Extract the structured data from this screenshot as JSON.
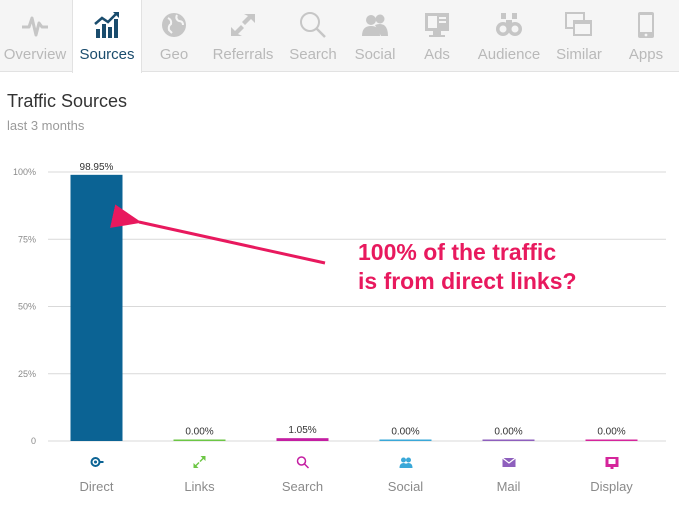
{
  "tabs": [
    {
      "label": "Overview",
      "icon": "pulse-icon",
      "active": false
    },
    {
      "label": "Sources",
      "icon": "bar-chart-icon",
      "active": true
    },
    {
      "label": "Geo",
      "icon": "globe-icon",
      "active": false
    },
    {
      "label": "Referrals",
      "icon": "arrows-icon",
      "active": false
    },
    {
      "label": "Search",
      "icon": "search-icon",
      "active": false
    },
    {
      "label": "Social",
      "icon": "people-icon",
      "active": false
    },
    {
      "label": "Ads",
      "icon": "ad-icon",
      "active": false
    },
    {
      "label": "Audience",
      "icon": "binoculars-icon",
      "active": false
    },
    {
      "label": "Similar",
      "icon": "windows-icon",
      "active": false
    },
    {
      "label": "Apps",
      "icon": "phone-icon",
      "active": false
    }
  ],
  "panel": {
    "title": "Traffic Sources",
    "subtitle": "last 3 months"
  },
  "annotation": {
    "line1": "100% of the traffic",
    "line2": "is from direct links?"
  },
  "colors": {
    "accent": "#1a4c6d",
    "annotation": "#e8195e"
  },
  "chart_data": {
    "type": "bar",
    "categories": [
      "Direct",
      "Links",
      "Search",
      "Social",
      "Mail",
      "Display"
    ],
    "values": [
      98.95,
      0.0,
      1.05,
      0.0,
      0.0,
      0.0
    ],
    "value_labels": [
      "98.95%",
      "0.00%",
      "1.05%",
      "0.00%",
      "0.00%",
      "0.00%"
    ],
    "colors": [
      "#0b6394",
      "#6cc644",
      "#c41ea2",
      "#3aa8d8",
      "#8e5fbd",
      "#d5259b"
    ],
    "icons": [
      "direct-icon",
      "links-icon",
      "search-icon",
      "social-icon",
      "mail-icon",
      "display-icon"
    ],
    "ylim": [
      0,
      100
    ],
    "yticks": [
      0,
      25,
      50,
      75,
      100
    ],
    "ytick_labels": [
      "0",
      "25%",
      "50%",
      "75%",
      "100%"
    ],
    "grid": true
  }
}
